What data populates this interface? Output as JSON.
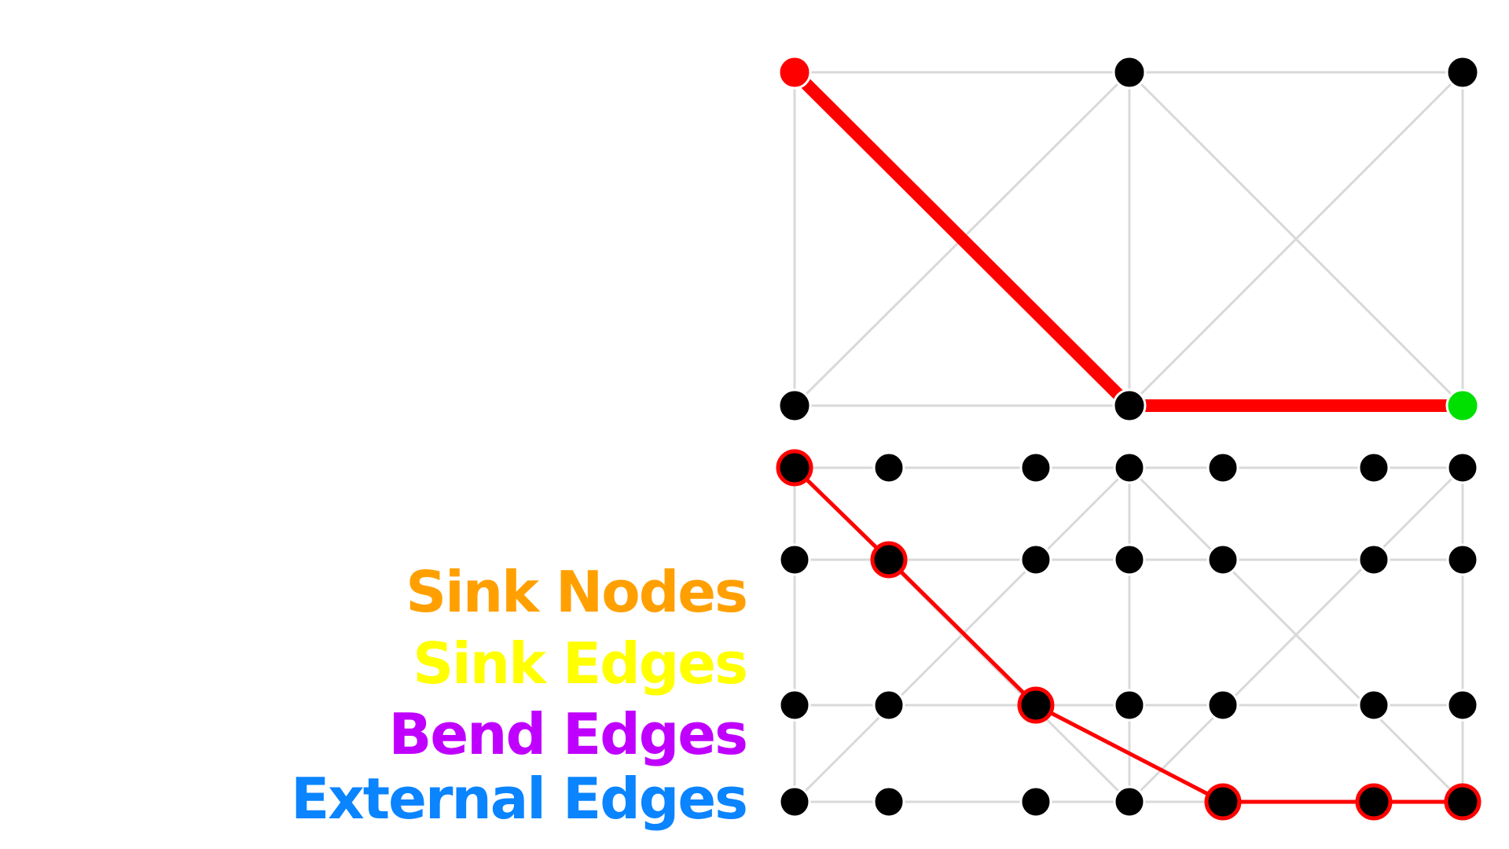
{
  "legend": {
    "sink_nodes": "Sink Nodes",
    "sink_edges": "Sink Edges",
    "bend_edges": "Bend Edges",
    "external_edges": "External Edges"
  },
  "colors": {
    "sink_nodes": "#ffa000",
    "sink_edges": "#ffff00",
    "bend_edges": "#c000ff",
    "external_edges": "#0a84ff",
    "path": "#ff0000",
    "source_node": "#ff0000",
    "target_node": "#00e000",
    "node": "#000000",
    "edge": "#d9d9d9"
  },
  "top_graph": {
    "nodes": [
      {
        "id": "A",
        "role": "source"
      },
      {
        "id": "B",
        "role": "normal"
      },
      {
        "id": "C",
        "role": "normal"
      },
      {
        "id": "D",
        "role": "normal"
      },
      {
        "id": "E",
        "role": "normal"
      },
      {
        "id": "F",
        "role": "target"
      }
    ],
    "edges": [
      [
        "A",
        "B"
      ],
      [
        "B",
        "C"
      ],
      [
        "A",
        "D"
      ],
      [
        "B",
        "E"
      ],
      [
        "C",
        "F"
      ],
      [
        "D",
        "E"
      ],
      [
        "E",
        "F"
      ],
      [
        "A",
        "E"
      ],
      [
        "D",
        "B"
      ],
      [
        "B",
        "F"
      ],
      [
        "E",
        "C"
      ]
    ],
    "path": [
      "A",
      "E",
      "F"
    ]
  },
  "bottom_graph": {
    "rows": 4,
    "cols": 7,
    "path": [
      [
        0,
        0
      ],
      [
        1,
        1
      ],
      [
        2,
        2
      ],
      [
        3,
        4
      ],
      [
        3,
        5
      ],
      [
        3,
        6
      ]
    ]
  }
}
